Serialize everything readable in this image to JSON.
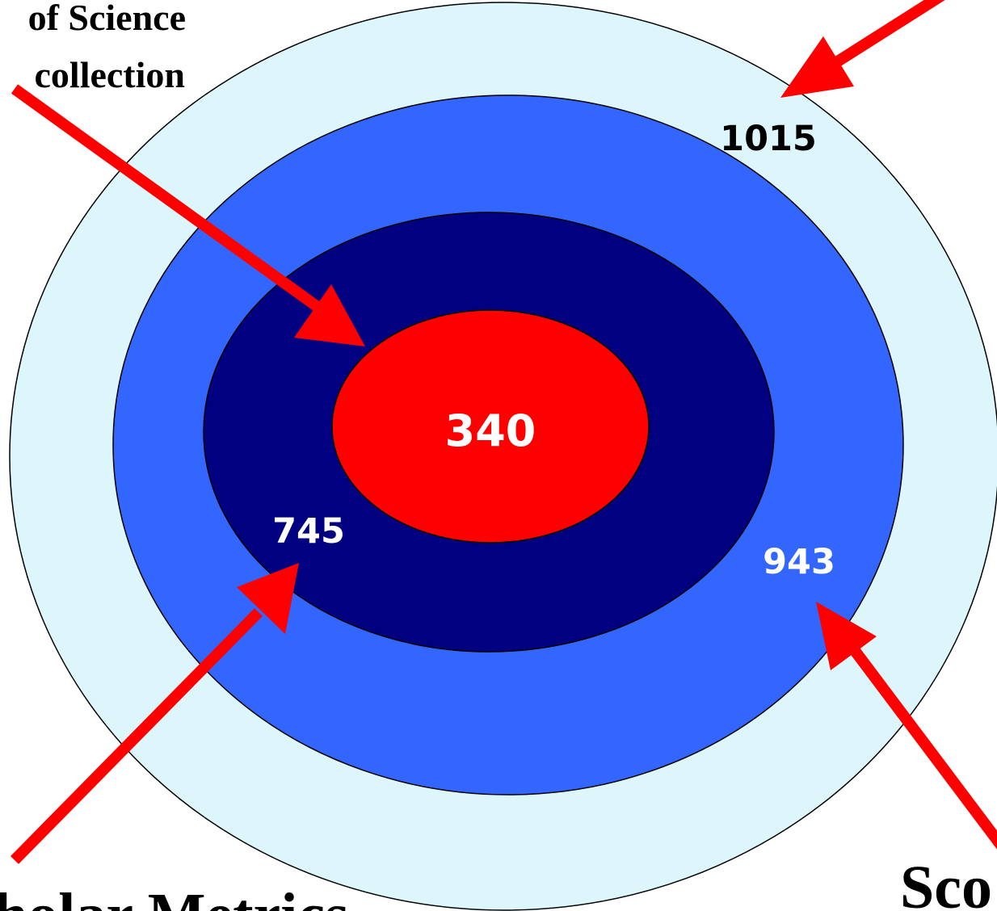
{
  "colors": {
    "outer_ring": "#DDF6FC",
    "blue_ring": "#3366FF",
    "navy_ring": "#000080",
    "core": "#FF0000",
    "arrow": "#FF0000",
    "ring_outline": "#000000",
    "value_dark": "#000000",
    "value_light": "#FFFFFF"
  },
  "labels": {
    "top_left_line1": "of Science",
    "top_left_line2": "collection",
    "bottom_left": "holar Metrics",
    "bottom_right": "Sco"
  },
  "values": {
    "outer": "1015",
    "blue": "943",
    "navy": "745",
    "core": "340"
  }
}
